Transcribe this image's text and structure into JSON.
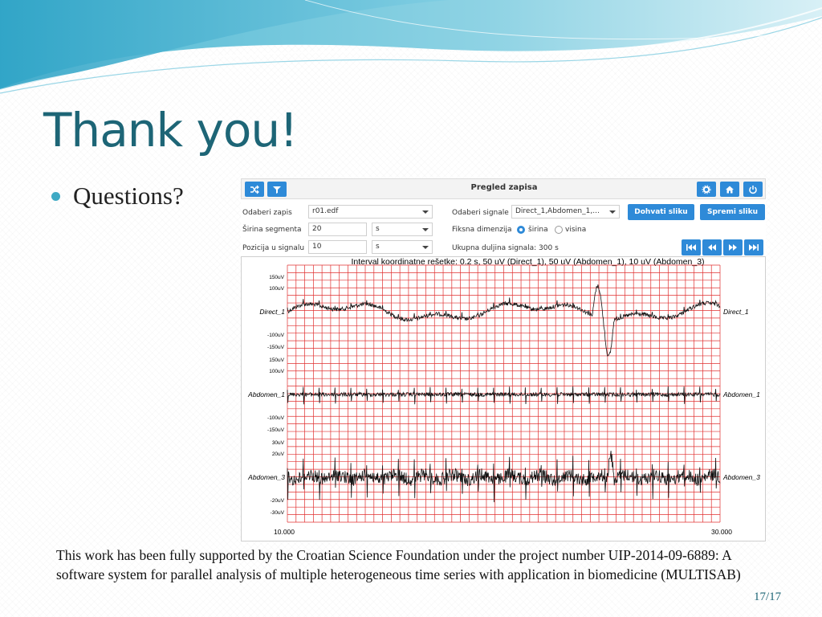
{
  "slide": {
    "title": "Thank you!",
    "bullet": "Questions?",
    "footer": "This work has been fully supported by the Croatian Science Foundation under the project number UIP-2014-09-6889:  A software system for parallel analysis of multiple heterogeneous time series with application in biomedicine (MULTISAB)",
    "page_number": "17/17"
  },
  "app": {
    "title": "Pregled zapisa",
    "toolbar_left_icons": [
      "shuffle-icon",
      "filter-icon"
    ],
    "toolbar_right_icons": [
      "gear-icon",
      "home-icon",
      "power-icon"
    ],
    "form": {
      "record_label": "Odaberi zapis",
      "record_value": "r01.edf",
      "segment_width_label": "Širina segmenta",
      "segment_width_value": "20",
      "segment_width_unit": "s",
      "signal_position_label": "Pozicija u signalu",
      "signal_position_value": "10",
      "signal_position_unit": "s",
      "signals_label": "Odaberi signale",
      "signals_value": "Direct_1,Abdomen_1,...",
      "fixed_dimension_label": "Fiksna dimenzija",
      "fixed_dimension_options": [
        "širina",
        "visina"
      ],
      "fixed_dimension_selected": "širina",
      "total_length_label": "Ukupna duljina signala: 300 s"
    },
    "buttons": {
      "fetch_image": "Dohvati sliku",
      "save_image": "Spremi sliku"
    },
    "nav_icons": [
      "skip-to-start-icon",
      "step-back-icon",
      "step-forward-icon",
      "skip-to-end-icon"
    ]
  },
  "chart_data": {
    "type": "line",
    "title": "Interval koordinatne rešetke: 0.2 s, 50 uV (Direct_1), 50 uV (Abdomen_1), 10 uV (Abdomen_3)",
    "x_range": [
      10.0,
      30.0
    ],
    "x_tick_labels": [
      "10.000",
      "30.000"
    ],
    "grid": true,
    "grid_color": "#e03030",
    "trace_color": "#111111",
    "series": [
      {
        "name": "Direct_1",
        "tick_labels": [
          "150uV",
          "100uV",
          "-100uV",
          "-150uV"
        ]
      },
      {
        "name": "Abdomen_1",
        "tick_labels": [
          "150uV",
          "100uV",
          "-100uV",
          "-150uV"
        ]
      },
      {
        "name": "Abdomen_3",
        "tick_labels": [
          "30uV",
          "20uV",
          "-20uV",
          "-30uV"
        ]
      }
    ]
  },
  "colors": {
    "title_teal": "#1d6576",
    "bullet": "#3ea9c4",
    "button_blue": "#2e8ad8"
  }
}
